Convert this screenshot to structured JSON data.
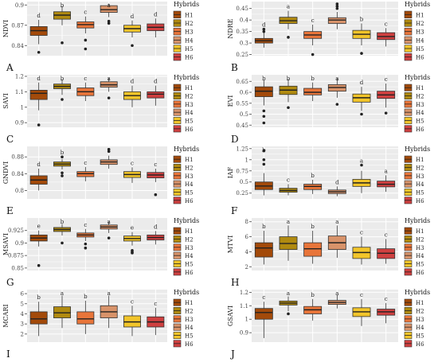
{
  "figure": {
    "legend_title": "Hybrids",
    "legend_entries": [
      "H1",
      "H2",
      "H3",
      "H4",
      "H5",
      "H6"
    ]
  },
  "colors": {
    "H1": "#a34a0a",
    "H2": "#b08a10",
    "H3": "#e8753a",
    "H4": "#d8936a",
    "H5": "#f2c52a",
    "H6": "#cf4040",
    "panel_bg": "#ebebeb",
    "grid": "#ffffff"
  },
  "chart_data": [
    {
      "type": "box",
      "panel": "A",
      "ylabel": "NDVI",
      "ylim": [
        0.825,
        0.905
      ],
      "ticks": [
        0.84,
        0.87,
        0.9
      ],
      "categories": [
        "H1",
        "H2",
        "H3",
        "H4",
        "H5",
        "H6"
      ],
      "boxes": [
        {
          "q1": 0.855,
          "med": 0.862,
          "q3": 0.868,
          "lo": 0.842,
          "hi": 0.878,
          "out": [
            0.83
          ],
          "letter": "d"
        },
        {
          "q1": 0.879,
          "med": 0.885,
          "q3": 0.89,
          "lo": 0.87,
          "hi": 0.898,
          "out": [
            0.844
          ],
          "letter": "b"
        },
        {
          "q1": 0.866,
          "med": 0.871,
          "q3": 0.875,
          "lo": 0.858,
          "hi": 0.883,
          "out": [
            0.848,
            0.835
          ],
          "letter": "c"
        },
        {
          "q1": 0.889,
          "med": 0.893,
          "q3": 0.899,
          "lo": 0.882,
          "hi": 0.902,
          "out": [
            0.876,
            0.873
          ],
          "letter": "a"
        },
        {
          "q1": 0.86,
          "med": 0.865,
          "q3": 0.87,
          "lo": 0.852,
          "hi": 0.877,
          "out": [
            0.84
          ],
          "letter": "d"
        },
        {
          "q1": 0.862,
          "med": 0.867,
          "q3": 0.872,
          "lo": 0.852,
          "hi": 0.88,
          "out": [],
          "letter": "d"
        }
      ]
    },
    {
      "type": "box",
      "panel": "B",
      "ylabel": "NDRE",
      "ylim": [
        0.245,
        0.48
      ],
      "ticks": [
        0.25,
        0.3,
        0.35,
        0.4,
        0.45
      ],
      "categories": [
        "H1",
        "H2",
        "H3",
        "H4",
        "H5",
        "H6"
      ],
      "boxes": [
        {
          "q1": 0.3,
          "med": 0.31,
          "q3": 0.32,
          "lo": 0.28,
          "hi": 0.345,
          "out": [
            0.35,
            0.36
          ],
          "letter": "d"
        },
        {
          "q1": 0.385,
          "med": 0.397,
          "q3": 0.412,
          "lo": 0.36,
          "hi": 0.44,
          "out": [
            0.325
          ],
          "letter": "a"
        },
        {
          "q1": 0.32,
          "med": 0.335,
          "q3": 0.35,
          "lo": 0.29,
          "hi": 0.38,
          "out": [
            0.25
          ],
          "letter": "c"
        },
        {
          "q1": 0.385,
          "med": 0.4,
          "q3": 0.41,
          "lo": 0.36,
          "hi": 0.435,
          "out": [
            0.45,
            0.46,
            0.47
          ],
          "letter": "a"
        },
        {
          "q1": 0.32,
          "med": 0.338,
          "q3": 0.355,
          "lo": 0.29,
          "hi": 0.385,
          "out": [
            0.255
          ],
          "letter": "b"
        },
        {
          "q1": 0.315,
          "med": 0.328,
          "q3": 0.345,
          "lo": 0.285,
          "hi": 0.365,
          "out": [],
          "letter": "c"
        }
      ]
    },
    {
      "type": "box",
      "panel": "C",
      "ylabel": "SAVI",
      "ylim": [
        0.87,
        1.21
      ],
      "ticks": [
        0.9,
        1.0,
        1.1,
        1.2
      ],
      "categories": [
        "H1",
        "H2",
        "H3",
        "H4",
        "H5",
        "H6"
      ],
      "boxes": [
        {
          "q1": 1.05,
          "med": 1.09,
          "q3": 1.11,
          "lo": 0.98,
          "hi": 1.16,
          "out": [
            0.885
          ],
          "letter": "d"
        },
        {
          "q1": 1.12,
          "med": 1.135,
          "q3": 1.15,
          "lo": 1.08,
          "hi": 1.18,
          "out": [
            1.05
          ],
          "letter": "b"
        },
        {
          "q1": 1.075,
          "med": 1.1,
          "q3": 1.125,
          "lo": 1.04,
          "hi": 1.16,
          "out": [],
          "letter": "c"
        },
        {
          "q1": 1.13,
          "med": 1.145,
          "q3": 1.165,
          "lo": 1.1,
          "hi": 1.19,
          "out": [
            1.06
          ],
          "letter": "a"
        },
        {
          "q1": 1.05,
          "med": 1.075,
          "q3": 1.1,
          "lo": 1.0,
          "hi": 1.14,
          "out": [],
          "letter": "d"
        },
        {
          "q1": 1.06,
          "med": 1.085,
          "q3": 1.1,
          "lo": 1.01,
          "hi": 1.14,
          "out": [],
          "letter": "d"
        }
      ]
    },
    {
      "type": "box",
      "panel": "D",
      "ylabel": "EVI",
      "ylim": [
        0.44,
        0.68
      ],
      "ticks": [
        0.45,
        0.5,
        0.55,
        0.6,
        0.65
      ],
      "categories": [
        "H1",
        "H2",
        "H3",
        "H4",
        "H5",
        "H6"
      ],
      "boxes": [
        {
          "q1": 0.58,
          "med": 0.605,
          "q3": 0.625,
          "lo": 0.54,
          "hi": 0.655,
          "out": [
            0.515,
            0.49,
            0.46
          ],
          "letter": "b"
        },
        {
          "q1": 0.59,
          "med": 0.61,
          "q3": 0.628,
          "lo": 0.555,
          "hi": 0.66,
          "out": [
            0.53
          ],
          "letter": "b"
        },
        {
          "q1": 0.588,
          "med": 0.6,
          "q3": 0.618,
          "lo": 0.56,
          "hi": 0.645,
          "out": [],
          "letter": "b"
        },
        {
          "q1": 0.605,
          "med": 0.622,
          "q3": 0.635,
          "lo": 0.575,
          "hi": 0.665,
          "out": [
            0.545
          ],
          "letter": "a"
        },
        {
          "q1": 0.555,
          "med": 0.575,
          "q3": 0.592,
          "lo": 0.515,
          "hi": 0.625,
          "out": [
            0.5
          ],
          "letter": "d"
        },
        {
          "q1": 0.572,
          "med": 0.588,
          "q3": 0.605,
          "lo": 0.53,
          "hi": 0.64,
          "out": [
            0.505
          ],
          "letter": "c"
        }
      ]
    },
    {
      "type": "box",
      "panel": "E",
      "ylabel": "GNDVI",
      "ylim": [
        0.78,
        0.905
      ],
      "ticks": [
        0.8,
        0.84,
        0.88
      ],
      "categories": [
        "H1",
        "H2",
        "H3",
        "H4",
        "H5",
        "H6"
      ],
      "boxes": [
        {
          "q1": 0.815,
          "med": 0.825,
          "q3": 0.835,
          "lo": 0.8,
          "hi": 0.852,
          "out": [],
          "letter": "d"
        },
        {
          "q1": 0.858,
          "med": 0.863,
          "q3": 0.868,
          "lo": 0.85,
          "hi": 0.875,
          "out": [
            0.842,
            0.835,
            0.88
          ],
          "letter": "b"
        },
        {
          "q1": 0.833,
          "med": 0.84,
          "q3": 0.845,
          "lo": 0.822,
          "hi": 0.856,
          "out": [],
          "letter": "c"
        },
        {
          "q1": 0.862,
          "med": 0.868,
          "q3": 0.873,
          "lo": 0.852,
          "hi": 0.883,
          "out": [
            0.898,
            0.893
          ],
          "letter": "a"
        },
        {
          "q1": 0.831,
          "med": 0.838,
          "q3": 0.845,
          "lo": 0.818,
          "hi": 0.855,
          "out": [],
          "letter": "c"
        },
        {
          "q1": 0.83,
          "med": 0.837,
          "q3": 0.843,
          "lo": 0.82,
          "hi": 0.852,
          "out": [
            0.79
          ],
          "letter": "c"
        }
      ]
    },
    {
      "type": "box",
      "panel": "F",
      "ylabel": "IAF",
      "ylim": [
        0.12,
        1.3
      ],
      "ticks": [
        0.25,
        0.5,
        0.75,
        1.0,
        1.25
      ],
      "categories": [
        "H1",
        "H2",
        "H3",
        "H4",
        "H5",
        "H6"
      ],
      "boxes": [
        {
          "q1": 0.33,
          "med": 0.41,
          "q3": 0.5,
          "lo": 0.2,
          "hi": 0.7,
          "out": [
            0.9,
            1.0,
            1.2
          ],
          "letter": "b"
        },
        {
          "q1": 0.27,
          "med": 0.31,
          "q3": 0.36,
          "lo": 0.2,
          "hi": 0.45,
          "out": [],
          "letter": "c"
        },
        {
          "q1": 0.33,
          "med": 0.4,
          "q3": 0.45,
          "lo": 0.23,
          "hi": 0.55,
          "out": [],
          "letter": "b"
        },
        {
          "q1": 0.24,
          "med": 0.28,
          "q3": 0.32,
          "lo": 0.18,
          "hi": 0.4,
          "out": [],
          "letter": "d"
        },
        {
          "q1": 0.4,
          "med": 0.48,
          "q3": 0.56,
          "lo": 0.25,
          "hi": 0.75,
          "out": [
            0.88
          ],
          "letter": "a"
        },
        {
          "q1": 0.39,
          "med": 0.45,
          "q3": 0.52,
          "lo": 0.28,
          "hi": 0.65,
          "out": [],
          "letter": "a"
        }
      ]
    },
    {
      "type": "box",
      "panel": "G",
      "ylabel": "MSAVI",
      "ylim": [
        0.845,
        0.95
      ],
      "ticks": [
        0.85,
        0.875,
        0.9,
        0.925
      ],
      "categories": [
        "H1",
        "H2",
        "H3",
        "H4",
        "H5",
        "H6"
      ],
      "boxes": [
        {
          "q1": 0.904,
          "med": 0.91,
          "q3": 0.916,
          "lo": 0.893,
          "hi": 0.925,
          "out": [
            0.855
          ],
          "letter": "e"
        },
        {
          "q1": 0.923,
          "med": 0.927,
          "q3": 0.931,
          "lo": 0.915,
          "hi": 0.938,
          "out": [
            0.9
          ],
          "letter": "b"
        },
        {
          "q1": 0.912,
          "med": 0.916,
          "q3": 0.92,
          "lo": 0.904,
          "hi": 0.928,
          "out": [
            0.898,
            0.89
          ],
          "letter": "c"
        },
        {
          "q1": 0.928,
          "med": 0.932,
          "q3": 0.936,
          "lo": 0.92,
          "hi": 0.942,
          "out": [
            0.91
          ],
          "letter": "a"
        },
        {
          "q1": 0.904,
          "med": 0.909,
          "q3": 0.914,
          "lo": 0.895,
          "hi": 0.922,
          "out": [
            0.885,
            0.88,
            0.882
          ],
          "letter": "e"
        },
        {
          "q1": 0.906,
          "med": 0.911,
          "q3": 0.916,
          "lo": 0.897,
          "hi": 0.924,
          "out": [],
          "letter": "d"
        }
      ]
    },
    {
      "type": "box",
      "panel": "H",
      "ylabel": "MTVI",
      "ylim": [
        1.5,
        8.5
      ],
      "ticks": [
        2,
        4,
        6,
        8
      ],
      "categories": [
        "H1",
        "H2",
        "H3",
        "H4",
        "H5",
        "H6"
      ],
      "boxes": [
        {
          "q1": 3.3,
          "med": 4.5,
          "q3": 5.2,
          "lo": 2.3,
          "hi": 6.8,
          "out": [],
          "letter": "b"
        },
        {
          "q1": 4.3,
          "med": 5.1,
          "q3": 6.0,
          "lo": 2.8,
          "hi": 7.5,
          "out": [],
          "letter": "a"
        },
        {
          "q1": 3.4,
          "med": 4.4,
          "q3": 5.2,
          "lo": 2.4,
          "hi": 6.8,
          "out": [],
          "letter": "b"
        },
        {
          "q1": 4.3,
          "med": 5.2,
          "q3": 6.1,
          "lo": 3.2,
          "hi": 7.5,
          "out": [],
          "letter": "a"
        },
        {
          "q1": 3.1,
          "med": 3.9,
          "q3": 4.6,
          "lo": 2.3,
          "hi": 6.0,
          "out": [],
          "letter": "c"
        },
        {
          "q1": 3.1,
          "med": 3.8,
          "q3": 4.4,
          "lo": 2.4,
          "hi": 5.7,
          "out": [],
          "letter": "c"
        }
      ]
    },
    {
      "type": "box",
      "panel": "I",
      "ylabel": "MCARI",
      "ylim": [
        1.2,
        6.4
      ],
      "ticks": [
        2,
        3,
        4,
        5,
        6
      ],
      "categories": [
        "H1",
        "H2",
        "H3",
        "H4",
        "H5",
        "H6"
      ],
      "boxes": [
        {
          "q1": 3.0,
          "med": 3.5,
          "q3": 4.2,
          "lo": 1.8,
          "hi": 5.2,
          "out": [],
          "letter": "b"
        },
        {
          "q1": 3.6,
          "med": 4.1,
          "q3": 4.7,
          "lo": 2.6,
          "hi": 5.8,
          "out": [],
          "letter": "a"
        },
        {
          "q1": 3.0,
          "med": 3.5,
          "q3": 4.2,
          "lo": 2.0,
          "hi": 5.3,
          "out": [],
          "letter": "b"
        },
        {
          "q1": 3.6,
          "med": 4.2,
          "q3": 4.8,
          "lo": 2.6,
          "hi": 5.8,
          "out": [],
          "letter": "a"
        },
        {
          "q1": 2.7,
          "med": 3.2,
          "q3": 3.8,
          "lo": 1.8,
          "hi": 4.8,
          "out": [],
          "letter": "c"
        },
        {
          "q1": 2.7,
          "med": 3.2,
          "q3": 3.7,
          "lo": 1.9,
          "hi": 4.6,
          "out": [],
          "letter": "c"
        }
      ]
    },
    {
      "type": "box",
      "panel": "J",
      "ylabel": "GSAVI",
      "ylim": [
        0.83,
        1.22
      ],
      "ticks": [
        0.9,
        1.0,
        1.1,
        1.2
      ],
      "categories": [
        "H1",
        "H2",
        "H3",
        "H4",
        "H5",
        "H6"
      ],
      "boxes": [
        {
          "q1": 1.0,
          "med": 1.05,
          "q3": 1.08,
          "lo": 0.86,
          "hi": 1.13,
          "out": [],
          "letter": "c"
        },
        {
          "q1": 1.105,
          "med": 1.12,
          "q3": 1.135,
          "lo": 1.06,
          "hi": 1.17,
          "out": [
            1.04
          ],
          "letter": "a"
        },
        {
          "q1": 1.04,
          "med": 1.07,
          "q3": 1.095,
          "lo": 0.99,
          "hi": 1.15,
          "out": [],
          "letter": "b"
        },
        {
          "q1": 1.11,
          "med": 1.125,
          "q3": 1.14,
          "lo": 1.08,
          "hi": 1.18,
          "out": [],
          "letter": "a"
        },
        {
          "q1": 1.02,
          "med": 1.055,
          "q3": 1.085,
          "lo": 0.95,
          "hi": 1.15,
          "out": [],
          "letter": "c"
        },
        {
          "q1": 1.03,
          "med": 1.055,
          "q3": 1.075,
          "lo": 0.97,
          "hi": 1.12,
          "out": [],
          "letter": "c"
        }
      ]
    }
  ]
}
